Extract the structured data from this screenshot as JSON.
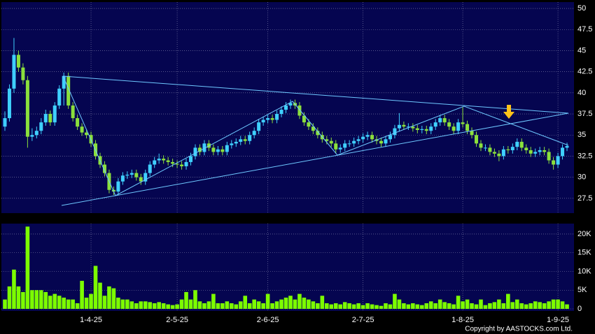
{
  "chart_data": {
    "type": "candlestick",
    "categories": [
      null,
      null,
      null,
      null,
      null,
      null,
      null,
      null,
      null,
      null,
      null,
      null,
      null,
      null,
      null,
      null,
      null,
      null,
      null,
      "1-4-25",
      null,
      null,
      null,
      null,
      null,
      null,
      null,
      null,
      null,
      null,
      null,
      null,
      null,
      null,
      null,
      null,
      null,
      null,
      "2-5-25",
      null,
      null,
      null,
      null,
      null,
      null,
      null,
      null,
      null,
      null,
      null,
      null,
      null,
      null,
      null,
      null,
      null,
      null,
      null,
      "2-6-25",
      null,
      null,
      null,
      null,
      null,
      null,
      null,
      null,
      null,
      null,
      null,
      null,
      null,
      null,
      null,
      null,
      null,
      null,
      null,
      null,
      "2-7-25",
      null,
      null,
      null,
      null,
      null,
      null,
      null,
      null,
      null,
      null,
      null,
      null,
      null,
      null,
      null,
      null,
      null,
      null,
      null,
      null,
      null,
      "1-8-25",
      null,
      null,
      null,
      null,
      null,
      null,
      null,
      null,
      null,
      null,
      null,
      null,
      null,
      null,
      null,
      null,
      null,
      null,
      null,
      null,
      "1-9-25",
      null,
      null
    ],
    "ohlc": [
      [
        36,
        37.8,
        35.5,
        37
      ],
      [
        37,
        41,
        36.6,
        40.5
      ],
      [
        40.5,
        46.5,
        40,
        44.5
      ],
      [
        44.5,
        45,
        42.5,
        43
      ],
      [
        43,
        43.5,
        41,
        41.5
      ],
      [
        41.5,
        42,
        33.5,
        34.8
      ],
      [
        34.8,
        35.8,
        34.3,
        35
      ],
      [
        35,
        36,
        34.6,
        35.5
      ],
      [
        35.5,
        37,
        35.1,
        36.5
      ],
      [
        36.5,
        38,
        36.1,
        37.5
      ],
      [
        37.5,
        37.9,
        36.1,
        36.5
      ],
      [
        36.5,
        38.9,
        36.1,
        38.5
      ],
      [
        38.5,
        40.9,
        38.1,
        40.5
      ],
      [
        40.5,
        42.4,
        38.5,
        42
      ],
      [
        42,
        42.4,
        38.1,
        38.5
      ],
      [
        38.5,
        38.9,
        36.6,
        37
      ],
      [
        37,
        37.4,
        35.6,
        36
      ],
      [
        36,
        36.4,
        34.9,
        35.3
      ],
      [
        35.3,
        35.7,
        34.6,
        35
      ],
      [
        35,
        35.4,
        33.6,
        34
      ],
      [
        34,
        34.4,
        32.1,
        32.5
      ],
      [
        32.5,
        32.9,
        31.1,
        31.5
      ],
      [
        31.5,
        31.9,
        30.1,
        30.5
      ],
      [
        30.5,
        30.9,
        28.1,
        28.5
      ],
      [
        28.5,
        28.9,
        27.9,
        28.3
      ],
      [
        28.3,
        29.9,
        27.9,
        29.5
      ],
      [
        29.5,
        30.6,
        29.1,
        30.2
      ],
      [
        30.2,
        30.7,
        29.8,
        30.3
      ],
      [
        30.3,
        30.9,
        29.9,
        30.5
      ],
      [
        30.5,
        30.9,
        29.6,
        30
      ],
      [
        30,
        30.4,
        29.1,
        29.5
      ],
      [
        29.5,
        30.9,
        29.1,
        30.5
      ],
      [
        30.5,
        31.9,
        30.1,
        31.5
      ],
      [
        31.5,
        32.4,
        31.1,
        32
      ],
      [
        32,
        32.8,
        31.6,
        32.2
      ],
      [
        32.2,
        32.6,
        31.6,
        32
      ],
      [
        32,
        32.4,
        31.4,
        31.8
      ],
      [
        31.8,
        32.2,
        31.2,
        31.6
      ],
      [
        31.6,
        32,
        31.1,
        31.5
      ],
      [
        31.5,
        31.9,
        30.9,
        31.3
      ],
      [
        31.3,
        32.2,
        30.9,
        31.8
      ],
      [
        31.8,
        32.9,
        31.4,
        32.5
      ],
      [
        32.5,
        33.9,
        32.1,
        33.5
      ],
      [
        33.5,
        33.9,
        32.6,
        33
      ],
      [
        33,
        34.4,
        32.6,
        34
      ],
      [
        34,
        34.4,
        33.1,
        33.5
      ],
      [
        33.5,
        33.9,
        32.6,
        33
      ],
      [
        33,
        33.7,
        32.6,
        33.3
      ],
      [
        33.3,
        33.7,
        32.6,
        33
      ],
      [
        33,
        34.2,
        32.6,
        33.8
      ],
      [
        33.8,
        34.4,
        33.4,
        34
      ],
      [
        34,
        34.6,
        33.6,
        34.2
      ],
      [
        34.2,
        34.9,
        33.8,
        34.5
      ],
      [
        34.5,
        34.9,
        33.9,
        34.3
      ],
      [
        34.3,
        35.4,
        33.9,
        35
      ],
      [
        35,
        35.9,
        34.6,
        35.5
      ],
      [
        35.5,
        36.9,
        35.1,
        36.5
      ],
      [
        36.5,
        37.2,
        36.1,
        36.8
      ],
      [
        36.8,
        37.4,
        36.4,
        37
      ],
      [
        37,
        37.4,
        36.4,
        36.8
      ],
      [
        36.8,
        37.9,
        36.4,
        37.5
      ],
      [
        37.5,
        38.4,
        37.1,
        38
      ],
      [
        38,
        38.9,
        37.6,
        38.5
      ],
      [
        38.5,
        39.2,
        38.1,
        38.8
      ],
      [
        38.8,
        39.2,
        38.1,
        38.5
      ],
      [
        38.5,
        38.9,
        36.9,
        37.3
      ],
      [
        37.3,
        37.7,
        36.1,
        36.5
      ],
      [
        36.5,
        36.9,
        35.6,
        36
      ],
      [
        36,
        36.4,
        35.1,
        35.5
      ],
      [
        35.5,
        35.9,
        34.6,
        35
      ],
      [
        35,
        35.4,
        34.1,
        34.5
      ],
      [
        34.5,
        34.9,
        33.9,
        34.3
      ],
      [
        34.3,
        34.7,
        33.6,
        34
      ],
      [
        34,
        34.4,
        32.9,
        33.3
      ],
      [
        33.3,
        33.9,
        32.9,
        33.5
      ],
      [
        33.5,
        34.4,
        33.1,
        34
      ],
      [
        34,
        34.4,
        33.6,
        34
      ],
      [
        34,
        34.7,
        33.6,
        34.3
      ],
      [
        34.3,
        34.9,
        33.9,
        34.5
      ],
      [
        34.5,
        35.2,
        34.1,
        34.8
      ],
      [
        34.8,
        35.4,
        34.4,
        35
      ],
      [
        35,
        35.4,
        34.1,
        34.5
      ],
      [
        34.5,
        34.9,
        33.9,
        34.3
      ],
      [
        34.3,
        34.7,
        33.6,
        34
      ],
      [
        34,
        34.9,
        33.6,
        34.5
      ],
      [
        34.5,
        35.4,
        34.1,
        35
      ],
      [
        35,
        36.2,
        34.6,
        35.8
      ],
      [
        35.8,
        37.6,
        35.4,
        36.2
      ],
      [
        36.2,
        36.6,
        35.6,
        36
      ],
      [
        36,
        36.4,
        35.6,
        36
      ],
      [
        36,
        36.4,
        35.4,
        35.8
      ],
      [
        35.8,
        36.2,
        35.2,
        35.6
      ],
      [
        35.6,
        36.1,
        35.2,
        35.7
      ],
      [
        35.7,
        36.1,
        35.1,
        35.5
      ],
      [
        35.5,
        36.4,
        35.1,
        36
      ],
      [
        36,
        36.9,
        35.6,
        36.5
      ],
      [
        36.5,
        37.4,
        36.1,
        37
      ],
      [
        37,
        37.4,
        36.1,
        36.5
      ],
      [
        36.5,
        36.9,
        35.6,
        36
      ],
      [
        36,
        36.4,
        35.1,
        35.5
      ],
      [
        35.5,
        36.9,
        35.1,
        36.5
      ],
      [
        36.5,
        38.3,
        35.9,
        36.3
      ],
      [
        36.3,
        36.7,
        35.1,
        35.5
      ],
      [
        35.5,
        35.9,
        34.6,
        35
      ],
      [
        35,
        35.4,
        33.6,
        34
      ],
      [
        34,
        34.4,
        33.1,
        33.5
      ],
      [
        33.5,
        33.9,
        33.1,
        33.5
      ],
      [
        33.5,
        33.9,
        32.6,
        33
      ],
      [
        33,
        33.4,
        32.4,
        32.8
      ],
      [
        32.8,
        33.2,
        31.9,
        32.5
      ],
      [
        32.5,
        33.7,
        32.1,
        33.3
      ],
      [
        33.3,
        33.7,
        32.8,
        33.2
      ],
      [
        33.2,
        34,
        32.8,
        33.6
      ],
      [
        33.6,
        34.6,
        33.2,
        34.2
      ],
      [
        34.2,
        34.6,
        33.1,
        33.5
      ],
      [
        33.5,
        33.9,
        32.8,
        33.2
      ],
      [
        33.2,
        33.6,
        32.4,
        32.8
      ],
      [
        32.8,
        33.4,
        32.4,
        33
      ],
      [
        33,
        33.6,
        32.6,
        33.2
      ],
      [
        33.2,
        33.6,
        32.6,
        33
      ],
      [
        33,
        33.4,
        31.6,
        32
      ],
      [
        32,
        32.4,
        30.9,
        31.5
      ],
      [
        31.5,
        32.9,
        31.1,
        32.5
      ],
      [
        32.5,
        33.9,
        32.1,
        33.5
      ],
      [
        33.5,
        34.1,
        33.1,
        33.7
      ]
    ],
    "up_color": "#3fd0ff",
    "down_color": "#8be03c",
    "ylim": [
      25.75,
      50.75
    ],
    "yticks": [
      27.5,
      30,
      32.5,
      35,
      37.5,
      40,
      42.5,
      45,
      47.5,
      50
    ],
    "grid": true,
    "volume": {
      "color": "#7cfc00",
      "values": [
        2500,
        6000,
        10500,
        6000,
        4500,
        22000,
        5000,
        5000,
        5000,
        4500,
        3500,
        4000,
        3500,
        3000,
        2500,
        2500,
        1500,
        7500,
        3000,
        4000,
        11500,
        7000,
        3500,
        6000,
        5500,
        3000,
        2500,
        2500,
        2000,
        1500,
        2000,
        2000,
        1800,
        1500,
        1800,
        1500,
        1200,
        1000,
        1200,
        2500,
        4500,
        2500,
        5000,
        2000,
        1500,
        2000,
        4000,
        1500,
        1500,
        2000,
        1500,
        1200,
        2000,
        3500,
        1500,
        2500,
        2000,
        1500,
        4000,
        1500,
        2000,
        2500,
        3000,
        3500,
        2500,
        4000,
        3000,
        2500,
        2000,
        1500,
        3500,
        1500,
        1200,
        1500,
        1200,
        1800,
        1500,
        1200,
        1500,
        1000,
        1500,
        1200,
        1000,
        800,
        1500,
        1200,
        4000,
        2500,
        1500,
        1200,
        1500,
        1200,
        1000,
        1500,
        2000,
        1500,
        2500,
        1800,
        1500,
        1200,
        3500,
        2000,
        2500,
        1500,
        1200,
        2500,
        1000,
        1500,
        1800,
        2500,
        1500,
        4000,
        1800,
        2500,
        1500,
        1200,
        1500,
        2000,
        1800,
        1500,
        2000,
        2500,
        2500,
        2000,
        1200
      ],
      "ylim": [
        -560,
        22800
      ],
      "yticks": [
        0,
        {
          "value": 5000,
          "label": "5K"
        },
        {
          "value": 10000,
          "label": "10K"
        },
        {
          "value": 15000,
          "label": "15K"
        },
        {
          "value": 20000,
          "label": "20K"
        }
      ]
    },
    "copyright": "Copyright by AASTOCKS.com Ltd."
  }
}
